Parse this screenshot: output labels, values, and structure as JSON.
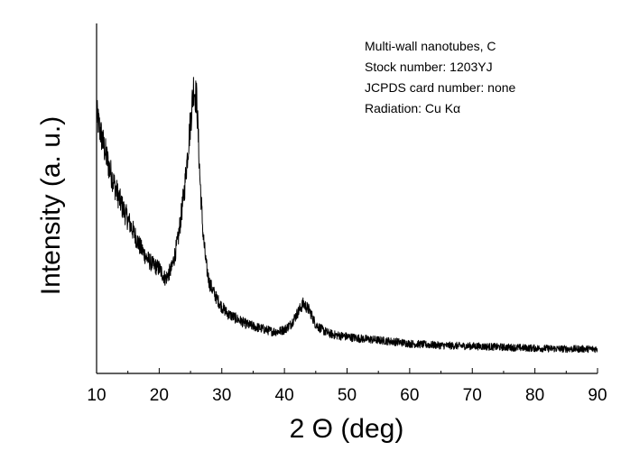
{
  "chart_data": {
    "type": "line",
    "title": "",
    "xlabel": "2 Θ (deg)",
    "ylabel": "Intensity (a. u.)",
    "xlim": [
      10,
      90
    ],
    "ylim": [
      0,
      100
    ],
    "x_ticks": [
      "10",
      "20",
      "30",
      "40",
      "50",
      "60",
      "70",
      "80",
      "90"
    ],
    "x_tick_values": [
      10,
      20,
      30,
      40,
      50,
      60,
      70,
      80,
      90
    ],
    "y_ticks_shown": false,
    "grid": false,
    "legend": "none",
    "line_color": "#000000",
    "annotations": [
      "Multi-wall nanotubes, C",
      "Stock number: 1203YJ",
      "JCPDS card number: none",
      "Radiation: Cu Kα"
    ],
    "annotation_position": "top-right",
    "series": [
      {
        "x": [
          10,
          11,
          12,
          13,
          14,
          15,
          16,
          17,
          18,
          19,
          20,
          21,
          22,
          23,
          24,
          25,
          25.5,
          26,
          26.5,
          27,
          27.5,
          28,
          29,
          30,
          31,
          32,
          33,
          34,
          35,
          36,
          37,
          38,
          39,
          40,
          41,
          42,
          43,
          44,
          45,
          46,
          47,
          48,
          50,
          52,
          55,
          58,
          60,
          65,
          70,
          75,
          80,
          85,
          90
        ],
        "y": [
          74,
          66,
          59,
          53,
          48,
          44,
          40,
          36,
          33,
          31,
          30,
          27,
          30,
          38,
          52,
          72,
          82,
          78,
          56,
          40,
          31,
          26,
          22,
          19,
          17,
          16,
          15,
          14,
          13.5,
          13,
          12.5,
          12,
          12,
          12.5,
          14,
          17,
          20,
          18,
          14,
          12.5,
          11.5,
          11,
          10.5,
          10,
          9.5,
          9,
          8.5,
          8,
          7.8,
          7.5,
          7.2,
          7,
          7
        ]
      }
    ]
  }
}
